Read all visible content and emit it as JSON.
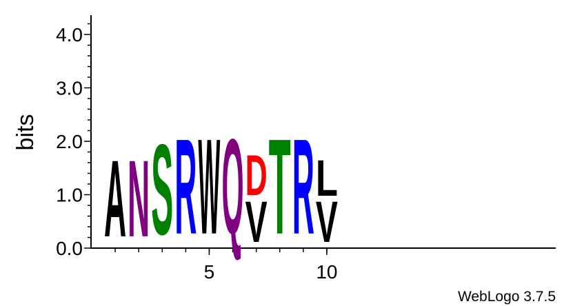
{
  "chart_data": {
    "type": "sequence-logo",
    "ylabel": "bits",
    "ylim": [
      0,
      4.3
    ],
    "y_ticks": [
      "0.0",
      "1.0",
      "2.0",
      "3.0",
      "4.0"
    ],
    "x_ticks": [
      {
        "position": 5,
        "label": "5"
      },
      {
        "position": 10,
        "label": "10"
      }
    ],
    "positions": [
      {
        "pos": 1,
        "letters": [
          {
            "letter": "A",
            "bits": 1.65,
            "color": "#000000"
          }
        ]
      },
      {
        "pos": 2,
        "letters": [
          {
            "letter": "N",
            "bits": 1.65,
            "color": "#800080"
          }
        ]
      },
      {
        "pos": 3,
        "letters": [
          {
            "letter": "S",
            "bits": 1.95,
            "color": "#008000"
          }
        ]
      },
      {
        "pos": 4,
        "letters": [
          {
            "letter": "R",
            "bits": 2.05,
            "color": "#0000ff"
          }
        ]
      },
      {
        "pos": 5,
        "letters": [
          {
            "letter": "W",
            "bits": 2.05,
            "color": "#000000"
          }
        ]
      },
      {
        "pos": 6,
        "letters": [
          {
            "letter": "Q",
            "bits": 2.05,
            "color": "#800080"
          }
        ]
      },
      {
        "pos": 7,
        "letters": [
          {
            "letter": "V",
            "bits": 0.88,
            "color": "#000000"
          },
          {
            "letter": "D",
            "bits": 0.87,
            "color": "#ff0000"
          }
        ]
      },
      {
        "pos": 8,
        "letters": [
          {
            "letter": "T",
            "bits": 2.05,
            "color": "#008000"
          }
        ]
      },
      {
        "pos": 9,
        "letters": [
          {
            "letter": "R",
            "bits": 2.05,
            "color": "#0000ff"
          }
        ]
      },
      {
        "pos": 10,
        "letters": [
          {
            "letter": "V",
            "bits": 0.88,
            "color": "#000000"
          },
          {
            "letter": "L",
            "bits": 0.77,
            "color": "#000000"
          }
        ]
      }
    ]
  },
  "credit": "WebLogo 3.7.5"
}
